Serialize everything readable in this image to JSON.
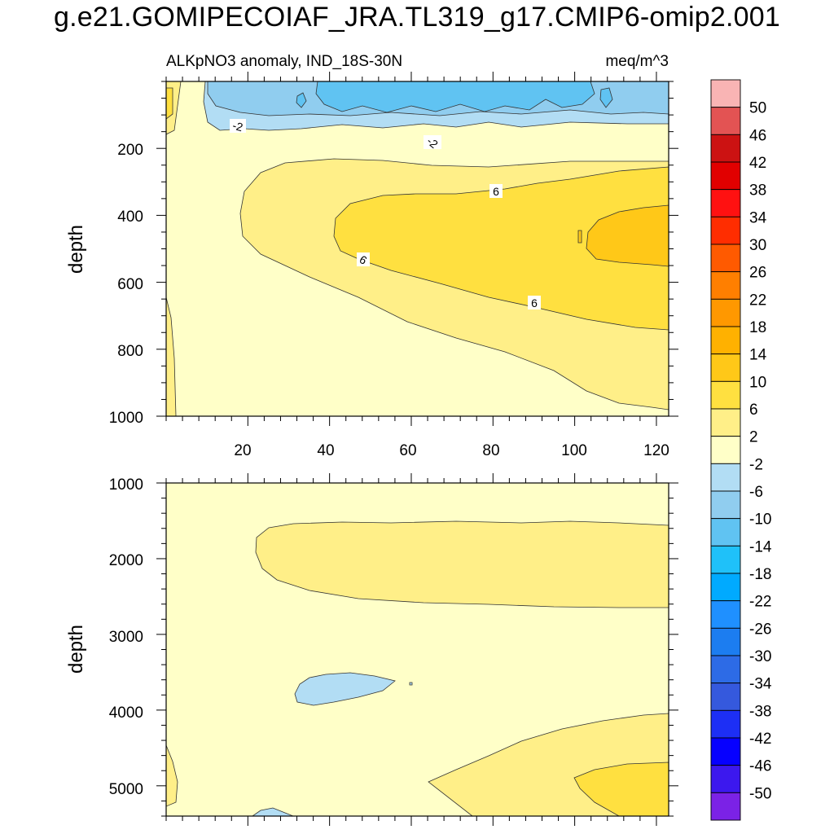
{
  "chart_data": {
    "type": "contour",
    "title": "g.e21.GOMIPECOIAF_JRA.TL319_g17.CMIP6-omip2.001",
    "units": "meq/m^3",
    "colorbar": {
      "levels": [
        50,
        46,
        42,
        38,
        34,
        30,
        26,
        22,
        18,
        14,
        10,
        6,
        2,
        -2,
        -6,
        -10,
        -14,
        -18,
        -22,
        -26,
        -30,
        -34,
        -38,
        -42,
        -46,
        -50
      ],
      "colors": [
        "#f9b4b4",
        "#e35353",
        "#cc1212",
        "#e10000",
        "#ff1111",
        "#ff2d00",
        "#ff5a00",
        "#ff7f00",
        "#ff9800",
        "#ffb100",
        "#ffc818",
        "#ffe040",
        "#ffef88",
        "#ffffc8",
        "#b2ddf4",
        "#90cdef",
        "#60c3f2",
        "#1fc1f9",
        "#00aaff",
        "#1f90ff",
        "#1c7df0",
        "#2d6be6",
        "#3559dd",
        "#1d2ff5",
        "#0600ff",
        "#3c18ee",
        "#7b22e6"
      ]
    },
    "panels": [
      {
        "subtitle_left": "ALKpNO3 anomaly, IND_18S-30N",
        "subtitle_right": "meq/m^3",
        "ylabel": "depth",
        "ylim": [
          0,
          1000
        ],
        "yticks": [
          "200",
          "400",
          "600",
          "800",
          "1000"
        ],
        "xlim": [
          0,
          123
        ],
        "xticks": [
          "20",
          "40",
          "60",
          "80",
          "100",
          "120"
        ],
        "contour_labels": [
          "-2",
          "-2",
          "6",
          "6",
          "6"
        ]
      },
      {
        "ylabel": "depth",
        "ylim": [
          1000,
          5400
        ],
        "yticks": [
          "1000",
          "2000",
          "3000",
          "4000",
          "5000"
        ],
        "xlim": [
          0,
          123
        ]
      }
    ]
  }
}
